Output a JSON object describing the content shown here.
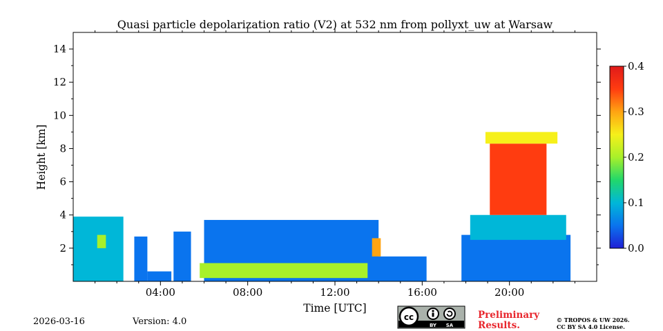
{
  "chart_data": {
    "type": "heatmap",
    "title": "Quasi particle depolarization ratio (V2) at 532 nm from pollyxt_uw at Warsaw",
    "xlabel": "Time [UTC]",
    "ylabel": "Height [km]",
    "xlim": [
      0,
      24
    ],
    "ylim": [
      0,
      15
    ],
    "xticks": [
      {
        "value": 4,
        "label": "04:00"
      },
      {
        "value": 8,
        "label": "08:00"
      },
      {
        "value": 12,
        "label": "12:00"
      },
      {
        "value": 16,
        "label": "16:00"
      },
      {
        "value": 20,
        "label": "20:00"
      }
    ],
    "yticks": [
      {
        "value": 2,
        "label": "2"
      },
      {
        "value": 4,
        "label": "4"
      },
      {
        "value": 6,
        "label": "6"
      },
      {
        "value": 8,
        "label": "8"
      },
      {
        "value": 10,
        "label": "10"
      },
      {
        "value": 12,
        "label": "12"
      },
      {
        "value": 14,
        "label": "14"
      }
    ],
    "colorbar": {
      "min": 0.0,
      "max": 0.4,
      "ticks": [
        {
          "value": 0.0,
          "label": "0.0"
        },
        {
          "value": 0.1,
          "label": "0.1"
        },
        {
          "value": 0.2,
          "label": "0.2"
        },
        {
          "value": 0.3,
          "label": "0.3"
        },
        {
          "value": 0.4,
          "label": "0.4"
        }
      ],
      "colors": [
        "#1f1fd6",
        "#0a74ee",
        "#00b7d8",
        "#22d86a",
        "#a8f02a",
        "#f6f01a",
        "#ffa412",
        "#ff3c10",
        "#e01a1a"
      ]
    },
    "regions": [
      {
        "name": "early-aerosol-layer",
        "t": [
          0.0,
          2.3
        ],
        "h": [
          0.0,
          3.9
        ],
        "value": 0.08
      },
      {
        "name": "early-dust-patch",
        "t": [
          1.1,
          1.5
        ],
        "h": [
          2.0,
          2.8
        ],
        "value": 0.22
      },
      {
        "name": "gap-column-1",
        "t": [
          2.8,
          3.4
        ],
        "h": [
          0.0,
          2.7
        ],
        "value": 0.05
      },
      {
        "name": "surface-dim-1",
        "t": [
          3.4,
          4.5
        ],
        "h": [
          0.0,
          0.6
        ],
        "value": 0.03
      },
      {
        "name": "column-before-noon",
        "t": [
          4.6,
          5.4
        ],
        "h": [
          0.0,
          3.0
        ],
        "value": 0.06
      },
      {
        "name": "day-boundary-layer",
        "t": [
          6.0,
          14.0
        ],
        "h": [
          0.0,
          3.7
        ],
        "value": 0.07
      },
      {
        "name": "day-surface-green-band",
        "t": [
          5.8,
          13.5
        ],
        "h": [
          0.2,
          1.1
        ],
        "value": 0.18
      },
      {
        "name": "afternoon-layer",
        "t": [
          13.5,
          16.2
        ],
        "h": [
          0.0,
          1.5
        ],
        "value": 0.04
      },
      {
        "name": "orange-spot",
        "t": [
          13.7,
          14.1
        ],
        "h": [
          1.5,
          2.6
        ],
        "value": 0.32
      },
      {
        "name": "evening-base",
        "t": [
          17.8,
          22.8
        ],
        "h": [
          0.0,
          2.8
        ],
        "value": 0.06
      },
      {
        "name": "evening-mid-layer",
        "t": [
          18.2,
          22.6
        ],
        "h": [
          2.5,
          4.0
        ],
        "value": 0.12
      },
      {
        "name": "evening-cloud",
        "t": [
          19.1,
          21.7
        ],
        "h": [
          4.0,
          8.3
        ],
        "value": 0.33
      },
      {
        "name": "evening-cloud-edge",
        "t": [
          18.9,
          22.2
        ],
        "h": [
          8.3,
          9.0
        ],
        "value": 0.24
      }
    ]
  },
  "footer": {
    "date": "2026-03-16",
    "version": "Version: 4.0",
    "license_badge": {
      "cc": "cc",
      "by": "BY",
      "sa": "SA"
    },
    "preliminary": [
      "Preliminary",
      "Results."
    ],
    "copyright": [
      "© TROPOS & UW 2026.",
      "CC BY SA 4.0 License."
    ]
  }
}
